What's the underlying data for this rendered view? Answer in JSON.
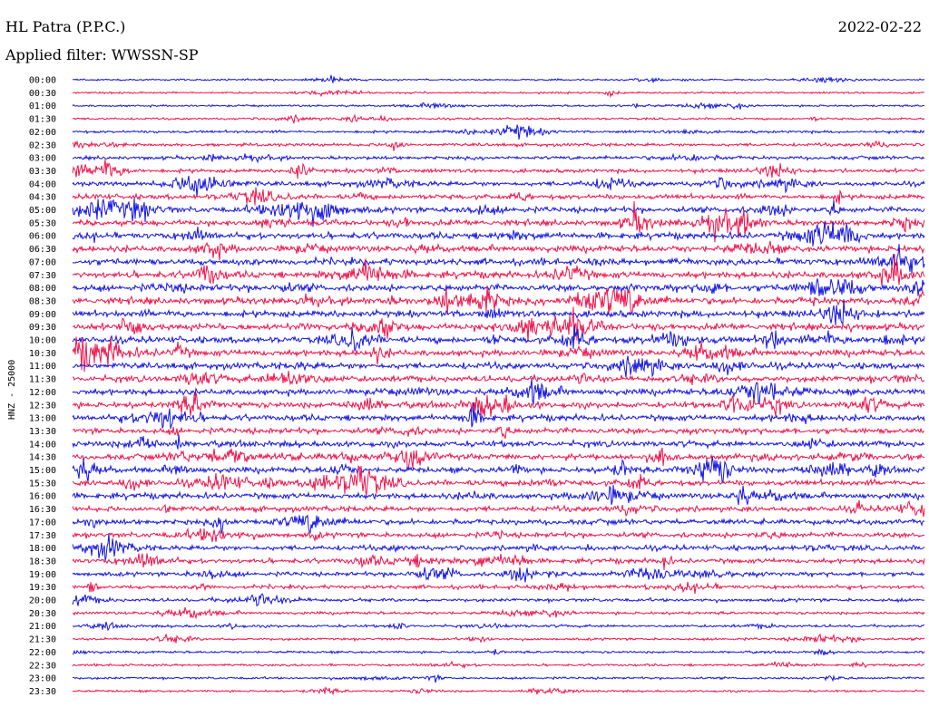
{
  "header": {
    "station": "HL Patra (P.P.C.)",
    "filter": "Applied filter: WWSSN-SP",
    "date": "2022-02-22"
  },
  "chart_data": {
    "type": "line",
    "title": "HL Patra (P.P.C.)",
    "ylabel": "HNZ - 25000",
    "rows": [
      "00:00",
      "00:30",
      "01:00",
      "01:30",
      "02:00",
      "02:30",
      "03:00",
      "03:30",
      "04:00",
      "04:30",
      "05:00",
      "05:30",
      "06:00",
      "06:30",
      "07:00",
      "07:30",
      "08:00",
      "08:30",
      "09:00",
      "09:30",
      "10:00",
      "10:30",
      "11:00",
      "11:30",
      "12:00",
      "12:30",
      "13:00",
      "13:30",
      "14:00",
      "14:30",
      "15:00",
      "15:30",
      "16:00",
      "16:30",
      "17:00",
      "17:30",
      "18:00",
      "18:30",
      "19:00",
      "19:30",
      "20:00",
      "20:30",
      "21:00",
      "21:30",
      "22:00",
      "22:30",
      "23:00",
      "23:30"
    ],
    "activity": [
      0.15,
      0.18,
      0.2,
      0.22,
      0.35,
      0.45,
      0.55,
      0.6,
      0.75,
      0.85,
      1.0,
      1.05,
      1.1,
      1.15,
      1.2,
      1.2,
      1.25,
      1.25,
      1.2,
      1.2,
      1.2,
      1.15,
      1.15,
      1.1,
      1.1,
      1.05,
      1.05,
      1.05,
      1.05,
      1.0,
      1.0,
      1.0,
      1.0,
      0.95,
      0.95,
      0.9,
      0.85,
      0.8,
      0.7,
      0.6,
      0.5,
      0.4,
      0.35,
      0.3,
      0.28,
      0.26,
      0.25,
      0.22
    ],
    "colors": {
      "even": "#1414e6",
      "odd": "#f0144b"
    }
  }
}
